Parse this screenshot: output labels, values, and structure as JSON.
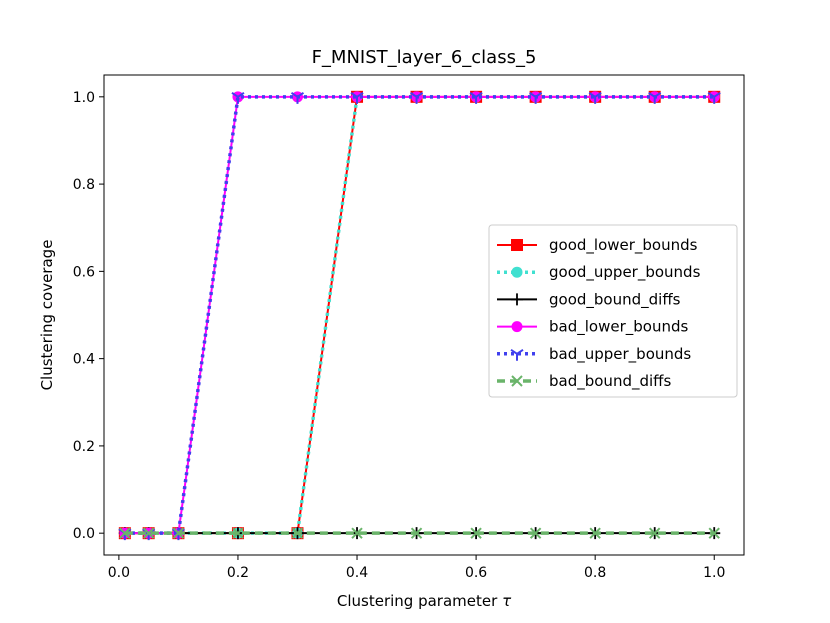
{
  "chart_data": {
    "type": "line",
    "title": "F_MNIST_layer_6_class_5",
    "xlabel": "Clustering parameter",
    "xlabel_symbol": "τ",
    "ylabel": "Clustering coverage",
    "xlim": [
      -0.025,
      1.05
    ],
    "ylim": [
      -0.05,
      1.05
    ],
    "xticks": [
      0.0,
      0.2,
      0.4,
      0.6,
      0.8,
      1.0
    ],
    "xtick_labels": [
      "0.0",
      "0.2",
      "0.4",
      "0.6",
      "0.8",
      "1.0"
    ],
    "yticks": [
      0.0,
      0.2,
      0.4,
      0.6,
      0.8,
      1.0
    ],
    "ytick_labels": [
      "0.0",
      "0.2",
      "0.4",
      "0.6",
      "0.8",
      "1.0"
    ],
    "grid": false,
    "legend_position": "center-right",
    "x": [
      0.01,
      0.05,
      0.1,
      0.2,
      0.3,
      0.4,
      0.5,
      0.6,
      0.7,
      0.8,
      0.9,
      1.0
    ],
    "series": [
      {
        "name": "good_lower_bounds",
        "color": "#ff0000",
        "linestyle": "solid",
        "marker": "square",
        "values": [
          0,
          0,
          0,
          0,
          0,
          1,
          1,
          1,
          1,
          1,
          1,
          1
        ]
      },
      {
        "name": "good_upper_bounds",
        "color": "#40e0d0",
        "linestyle": "dotted",
        "marker": "circle",
        "values": [
          0,
          0,
          0,
          0,
          0,
          1,
          1,
          1,
          1,
          1,
          1,
          1
        ]
      },
      {
        "name": "good_bound_diffs",
        "color": "#000000",
        "linestyle": "solid",
        "marker": "plus",
        "values": [
          0,
          0,
          0,
          0,
          0,
          0,
          0,
          0,
          0,
          0,
          0,
          0
        ]
      },
      {
        "name": "bad_lower_bounds",
        "color": "#ff00ff",
        "linestyle": "solid",
        "marker": "circle",
        "values": [
          0,
          0,
          0,
          1,
          1,
          1,
          1,
          1,
          1,
          1,
          1,
          1
        ]
      },
      {
        "name": "bad_upper_bounds",
        "color": "#4040ee",
        "linestyle": "dotted",
        "marker": "tri-down",
        "values": [
          0,
          0,
          0,
          1,
          1,
          1,
          1,
          1,
          1,
          1,
          1,
          1
        ]
      },
      {
        "name": "bad_bound_diffs",
        "color": "#6ab46a",
        "linestyle": "dashed",
        "marker": "x",
        "values": [
          0,
          0,
          0,
          0,
          0,
          0,
          0,
          0,
          0,
          0,
          0,
          0
        ]
      }
    ]
  }
}
